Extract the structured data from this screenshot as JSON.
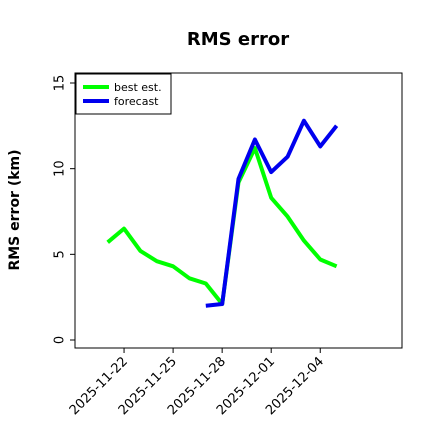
{
  "chart_data": {
    "type": "line",
    "title": "RMS error",
    "ylabel": "RMS error (km)",
    "xlabel": "",
    "ylim": [
      0,
      15
    ],
    "xlim": [
      "2025-11-19",
      "2025-12-09"
    ],
    "yticks": [
      0,
      5,
      10,
      15
    ],
    "xticks": [
      "2025-11-22",
      "2025-11-25",
      "2025-11-28",
      "2025-12-01",
      "2025-12-04"
    ],
    "grid": false,
    "legend_position": "top-left",
    "series": [
      {
        "name": "best est.",
        "color": "#00ff00",
        "x": [
          "2025-11-21",
          "2025-11-22",
          "2025-11-23",
          "2025-11-24",
          "2025-11-25",
          "2025-11-26",
          "2025-11-27",
          "2025-11-28",
          "2025-11-29",
          "2025-11-30",
          "2025-12-01",
          "2025-12-02",
          "2025-12-03",
          "2025-12-04",
          "2025-12-05"
        ],
        "y": [
          5.7,
          6.5,
          5.2,
          4.6,
          4.3,
          3.6,
          3.3,
          2.1,
          9.2,
          11.2,
          8.3,
          7.2,
          5.8,
          4.7,
          4.3
        ]
      },
      {
        "name": "forecast",
        "color": "#0000ee",
        "x": [
          "2025-11-27",
          "2025-11-28",
          "2025-11-29",
          "2025-11-30",
          "2025-12-01",
          "2025-12-02",
          "2025-12-03",
          "2025-12-04",
          "2025-12-05"
        ],
        "y": [
          2.0,
          2.1,
          9.4,
          11.7,
          9.8,
          10.7,
          12.8,
          11.3,
          12.5
        ]
      }
    ]
  }
}
